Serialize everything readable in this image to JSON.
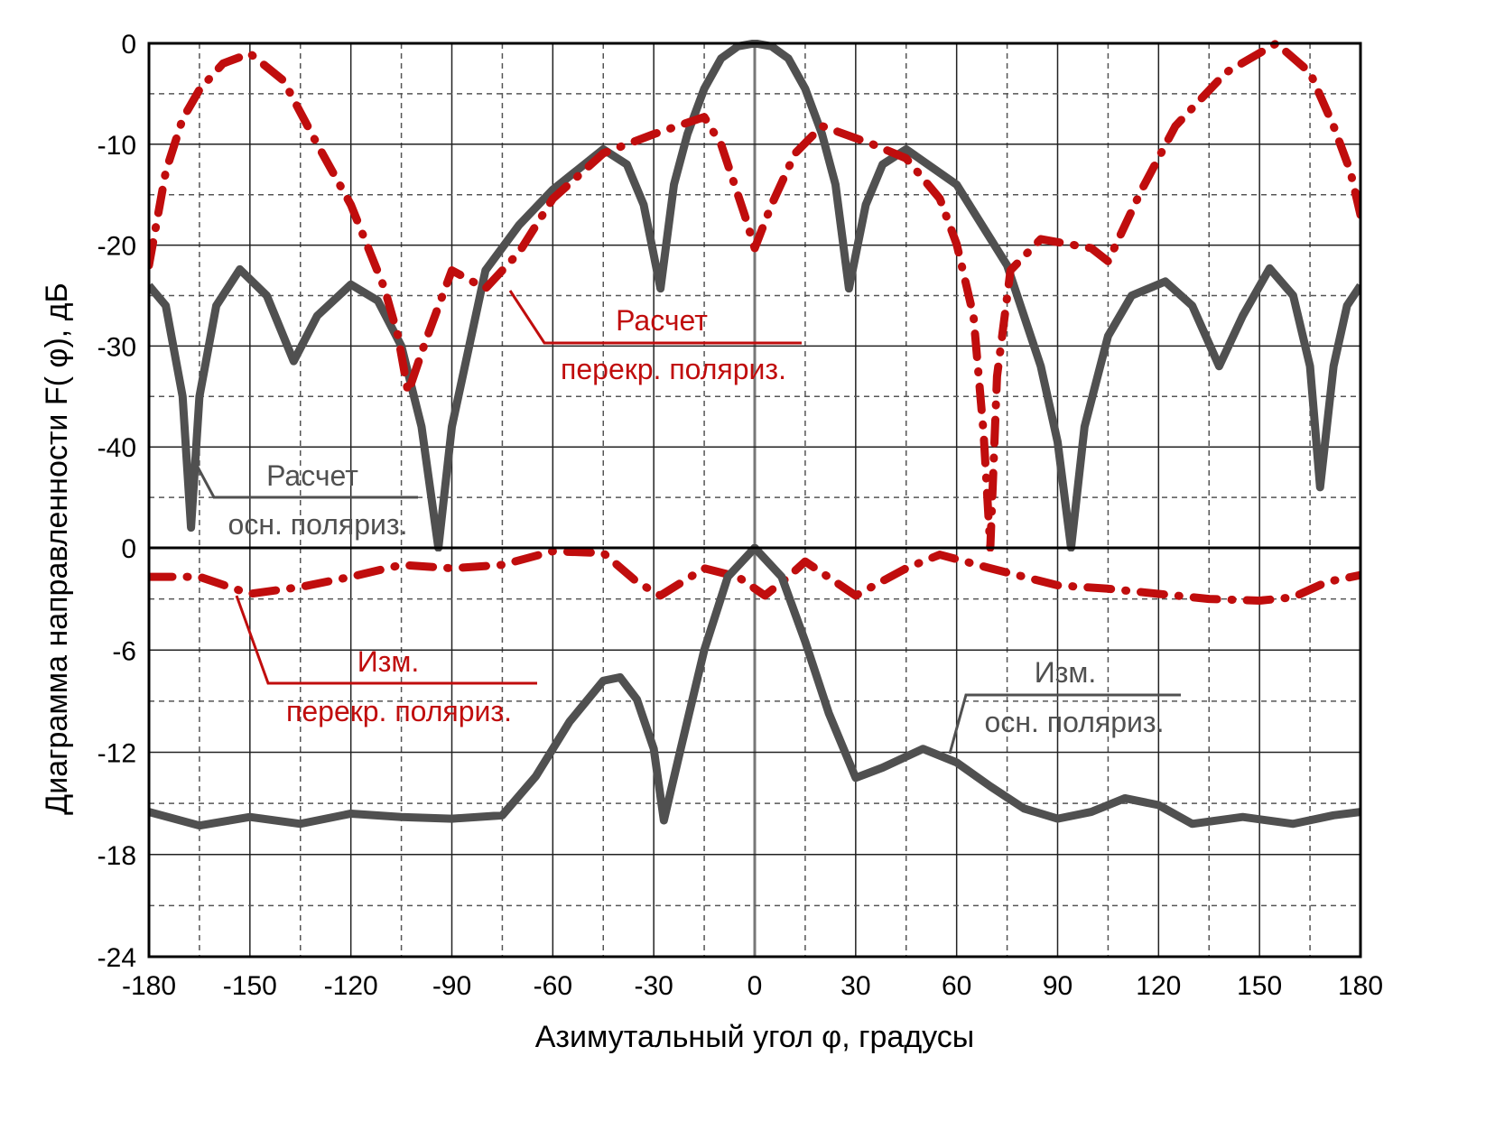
{
  "chart_data": [
    {
      "type": "line",
      "panel": "top",
      "xlim": [
        -180,
        180
      ],
      "ylim": [
        -50,
        0
      ],
      "xticks": [
        -180,
        -150,
        -120,
        -90,
        -60,
        -30,
        0,
        30,
        60,
        90,
        120,
        150,
        180
      ],
      "yticks": [
        0,
        -10,
        -20,
        -30,
        -40
      ],
      "grid": true,
      "series": [
        {
          "name": "Расчет осн. поляриз.",
          "color": "#505050",
          "style": "solid",
          "x": [
            -180,
            -175,
            -170,
            -167.5,
            -165,
            -160,
            -153,
            -145,
            -137,
            -130,
            -120,
            -112,
            -105,
            -99,
            -94,
            -90,
            -80,
            -70,
            -60,
            -45,
            -38,
            -33,
            -28,
            -24,
            -20,
            -15,
            -10,
            -5,
            0,
            5,
            10,
            15,
            20,
            24,
            28,
            33,
            38,
            45,
            60,
            75,
            85,
            90,
            94,
            98,
            105,
            112,
            122,
            130,
            138,
            145,
            153,
            160,
            165,
            168,
            172,
            176,
            180
          ],
          "y": [
            -24,
            -26,
            -35,
            -48,
            -35,
            -26,
            -22.4,
            -25,
            -31.5,
            -27,
            -23.9,
            -25.5,
            -30,
            -38,
            -50,
            -38,
            -22.5,
            -18,
            -14.5,
            -10.5,
            -12,
            -16,
            -24.3,
            -14,
            -9,
            -4.5,
            -1.5,
            -0.3,
            0,
            -0.3,
            -1.5,
            -4.5,
            -9,
            -14,
            -24.3,
            -16,
            -12,
            -10.5,
            -14,
            -22,
            -32,
            -39.5,
            -50,
            -38,
            -29,
            -25,
            -23.6,
            -26,
            -32,
            -27,
            -22.3,
            -25,
            -32,
            -44,
            -32,
            -26,
            -24
          ]
        },
        {
          "name": "Расчет перекр. поляриз.",
          "color": "#c00d0d",
          "style": "dashdot",
          "x": [
            -180,
            -175,
            -170,
            -165,
            -158,
            -150,
            -140,
            -130,
            -120,
            -110,
            -106,
            -103,
            -98,
            -90,
            -80,
            -70,
            -60,
            -45,
            -30,
            -15,
            -10,
            -3,
            0,
            5,
            12,
            20,
            35,
            45,
            55,
            60,
            65,
            68,
            70,
            72,
            76,
            85,
            100,
            105,
            115,
            125,
            140,
            155,
            165,
            172,
            177,
            180
          ],
          "y": [
            -22,
            -12.7,
            -7.5,
            -4.6,
            -2,
            -1,
            -3.7,
            -10,
            -16,
            -24.3,
            -29,
            -34.6,
            -29.7,
            -22.5,
            -24.3,
            -20.7,
            -15.4,
            -10.9,
            -9,
            -7.3,
            -10,
            -17,
            -20.3,
            -16,
            -10.9,
            -8.2,
            -10,
            -11.4,
            -15.4,
            -19.9,
            -27,
            -38.6,
            -50,
            -33,
            -22.5,
            -19.4,
            -20.3,
            -21.6,
            -14.5,
            -8.2,
            -2.9,
            0,
            -2.9,
            -8.2,
            -12.7,
            -17
          ]
        }
      ]
    },
    {
      "type": "line",
      "panel": "bottom",
      "xlim": [
        -180,
        180
      ],
      "ylim": [
        -24,
        0
      ],
      "xticks": [
        -180,
        -150,
        -120,
        -90,
        -60,
        -30,
        0,
        30,
        60,
        90,
        120,
        150,
        180
      ],
      "yticks": [
        0,
        -6,
        -12,
        -18,
        -24
      ],
      "grid": true,
      "series": [
        {
          "name": "Изм. перекр. поляриз.",
          "color": "#c00d0d",
          "style": "dashdot",
          "x": [
            -180,
            -165,
            -150,
            -135,
            -120,
            -105,
            -90,
            -75,
            -60,
            -45,
            -35,
            -28,
            -15,
            -5,
            3,
            10,
            15,
            30,
            45,
            55,
            70,
            90,
            105,
            120,
            135,
            150,
            160,
            170,
            180
          ],
          "y": [
            -1.7,
            -1.7,
            -2.7,
            -2.3,
            -1.7,
            -1.0,
            -1.2,
            -1.0,
            -0.2,
            -0.3,
            -2,
            -2.8,
            -1.2,
            -1.7,
            -2.8,
            -1.7,
            -0.8,
            -2.8,
            -1.2,
            -0.4,
            -1.2,
            -2.2,
            -2.4,
            -2.7,
            -3,
            -3.1,
            -2.9,
            -2,
            -1.6
          ]
        },
        {
          "name": "Изм. осн. поляриз.",
          "color": "#505050",
          "style": "solid",
          "x": [
            -180,
            -165,
            -150,
            -135,
            -120,
            -105,
            -90,
            -75,
            -65,
            -55,
            -45,
            -40,
            -35,
            -30,
            -27,
            -22,
            -15,
            -8,
            0,
            8,
            15,
            22,
            30,
            38,
            50,
            60,
            70,
            80,
            90,
            100,
            110,
            120,
            130,
            145,
            160,
            172,
            180
          ],
          "y": [
            -15.5,
            -16.3,
            -15.8,
            -16.2,
            -15.6,
            -15.8,
            -15.9,
            -15.7,
            -13.4,
            -10.2,
            -7.8,
            -7.6,
            -8.9,
            -11.8,
            -16,
            -11.8,
            -6,
            -1.7,
            0,
            -1.7,
            -5.5,
            -9.7,
            -13.5,
            -12.9,
            -11.8,
            -12.6,
            -14,
            -15.3,
            -15.9,
            -15.5,
            -14.7,
            -15.1,
            -16.2,
            -15.8,
            -16.2,
            -15.7,
            -15.5
          ]
        }
      ]
    }
  ],
  "xlabel": "Азимутальный угол  φ, градусы",
  "ylabel": "Диаграмма направленности F( φ), дБ",
  "annotations": {
    "calc_main": {
      "line1": "Расчет",
      "line2": "осн. поляриз."
    },
    "calc_cross": {
      "line1": "Расчет",
      "line2": "перекр. поляриз."
    },
    "meas_cross": {
      "line1": "Изм.",
      "line2": "перекр. поляриз."
    },
    "meas_main": {
      "line1": "Изм.",
      "line2": "осн. поляриз."
    }
  },
  "colors": {
    "main": "#505050",
    "cross": "#c00d0d"
  }
}
